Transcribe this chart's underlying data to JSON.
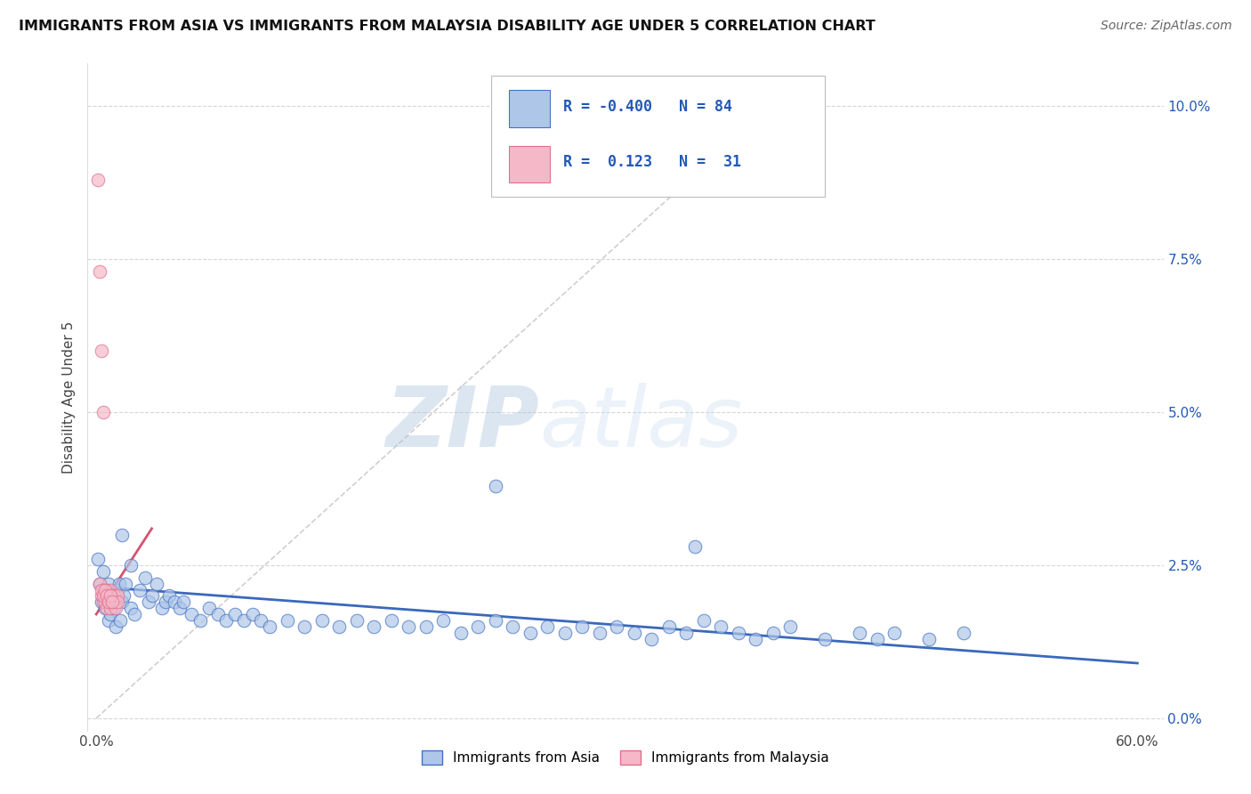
{
  "title": "IMMIGRANTS FROM ASIA VS IMMIGRANTS FROM MALAYSIA DISABILITY AGE UNDER 5 CORRELATION CHART",
  "source": "Source: ZipAtlas.com",
  "ylabel": "Disability Age Under 5",
  "xlim": [
    -0.005,
    0.615
  ],
  "ylim": [
    -0.002,
    0.107
  ],
  "xticks": [
    0.0,
    0.6
  ],
  "xtick_labels": [
    "0.0%",
    "60.0%"
  ],
  "yticks": [
    0.0,
    0.025,
    0.05,
    0.075,
    0.1
  ],
  "ytick_labels": [
    "0.0%",
    "2.5%",
    "5.0%",
    "7.5%",
    "10.0%"
  ],
  "asia_color": "#aec6e8",
  "malaysia_color": "#f4b8c8",
  "asia_edge_color": "#4472c4",
  "malaysia_edge_color": "#e07090",
  "trend_asia_color": "#2458b5",
  "trend_malaysia_color": "#d04060",
  "R_asia": -0.4,
  "N_asia": 84,
  "R_malaysia": 0.123,
  "N_malaysia": 31,
  "watermark_zip": "ZIP",
  "watermark_atlas": "atlas",
  "background_color": "#ffffff",
  "legend1_label": "Immigrants from Asia",
  "legend2_label": "Immigrants from Malaysia",
  "grid_color": "#cccccc",
  "asia_scatter": [
    [
      0.001,
      0.026
    ],
    [
      0.002,
      0.022
    ],
    [
      0.003,
      0.019
    ],
    [
      0.004,
      0.024
    ],
    [
      0.005,
      0.018
    ],
    [
      0.005,
      0.021
    ],
    [
      0.006,
      0.02
    ],
    [
      0.007,
      0.016
    ],
    [
      0.007,
      0.022
    ],
    [
      0.008,
      0.018
    ],
    [
      0.008,
      0.017
    ],
    [
      0.009,
      0.02
    ],
    [
      0.01,
      0.019
    ],
    [
      0.01,
      0.018
    ],
    [
      0.011,
      0.015
    ],
    [
      0.012,
      0.021
    ],
    [
      0.013,
      0.022
    ],
    [
      0.014,
      0.016
    ],
    [
      0.015,
      0.019
    ],
    [
      0.016,
      0.02
    ],
    [
      0.017,
      0.022
    ],
    [
      0.02,
      0.018
    ],
    [
      0.022,
      0.017
    ],
    [
      0.025,
      0.021
    ],
    [
      0.028,
      0.023
    ],
    [
      0.03,
      0.019
    ],
    [
      0.032,
      0.02
    ],
    [
      0.035,
      0.022
    ],
    [
      0.038,
      0.018
    ],
    [
      0.04,
      0.019
    ],
    [
      0.042,
      0.02
    ],
    [
      0.045,
      0.019
    ],
    [
      0.048,
      0.018
    ],
    [
      0.05,
      0.019
    ],
    [
      0.055,
      0.017
    ],
    [
      0.06,
      0.016
    ],
    [
      0.065,
      0.018
    ],
    [
      0.07,
      0.017
    ],
    [
      0.075,
      0.016
    ],
    [
      0.08,
      0.017
    ],
    [
      0.085,
      0.016
    ],
    [
      0.09,
      0.017
    ],
    [
      0.095,
      0.016
    ],
    [
      0.1,
      0.015
    ],
    [
      0.11,
      0.016
    ],
    [
      0.12,
      0.015
    ],
    [
      0.13,
      0.016
    ],
    [
      0.14,
      0.015
    ],
    [
      0.15,
      0.016
    ],
    [
      0.16,
      0.015
    ],
    [
      0.17,
      0.016
    ],
    [
      0.18,
      0.015
    ],
    [
      0.19,
      0.015
    ],
    [
      0.2,
      0.016
    ],
    [
      0.21,
      0.014
    ],
    [
      0.22,
      0.015
    ],
    [
      0.23,
      0.016
    ],
    [
      0.24,
      0.015
    ],
    [
      0.25,
      0.014
    ],
    [
      0.26,
      0.015
    ],
    [
      0.27,
      0.014
    ],
    [
      0.28,
      0.015
    ],
    [
      0.29,
      0.014
    ],
    [
      0.3,
      0.015
    ],
    [
      0.31,
      0.014
    ],
    [
      0.32,
      0.013
    ],
    [
      0.33,
      0.015
    ],
    [
      0.34,
      0.014
    ],
    [
      0.35,
      0.016
    ],
    [
      0.36,
      0.015
    ],
    [
      0.37,
      0.014
    ],
    [
      0.38,
      0.013
    ],
    [
      0.39,
      0.014
    ],
    [
      0.4,
      0.015
    ],
    [
      0.42,
      0.013
    ],
    [
      0.44,
      0.014
    ],
    [
      0.45,
      0.013
    ],
    [
      0.46,
      0.014
    ],
    [
      0.48,
      0.013
    ],
    [
      0.5,
      0.014
    ],
    [
      0.23,
      0.038
    ],
    [
      0.345,
      0.028
    ],
    [
      0.015,
      0.03
    ],
    [
      0.02,
      0.025
    ]
  ],
  "malaysia_scatter": [
    [
      0.001,
      0.088
    ],
    [
      0.002,
      0.073
    ],
    [
      0.003,
      0.06
    ],
    [
      0.004,
      0.05
    ],
    [
      0.002,
      0.022
    ],
    [
      0.003,
      0.02
    ],
    [
      0.004,
      0.021
    ],
    [
      0.004,
      0.019
    ],
    [
      0.005,
      0.02
    ],
    [
      0.005,
      0.019
    ],
    [
      0.006,
      0.018
    ],
    [
      0.006,
      0.021
    ],
    [
      0.007,
      0.02
    ],
    [
      0.007,
      0.019
    ],
    [
      0.008,
      0.018
    ],
    [
      0.008,
      0.021
    ],
    [
      0.009,
      0.019
    ],
    [
      0.009,
      0.02
    ],
    [
      0.01,
      0.019
    ],
    [
      0.01,
      0.02
    ],
    [
      0.011,
      0.019
    ],
    [
      0.011,
      0.018
    ],
    [
      0.012,
      0.02
    ],
    [
      0.012,
      0.019
    ],
    [
      0.003,
      0.021
    ],
    [
      0.004,
      0.02
    ],
    [
      0.005,
      0.021
    ],
    [
      0.006,
      0.02
    ],
    [
      0.007,
      0.019
    ],
    [
      0.008,
      0.02
    ],
    [
      0.009,
      0.019
    ]
  ],
  "asia_trend_x": [
    0.0,
    0.6
  ],
  "asia_trend_y": [
    0.0215,
    0.009
  ],
  "malaysia_trend_x": [
    0.0,
    0.032
  ],
  "malaysia_trend_y": [
    0.017,
    0.031
  ],
  "diag_line_x": [
    0.0,
    0.4
  ],
  "diag_line_y": [
    0.0,
    0.103
  ]
}
